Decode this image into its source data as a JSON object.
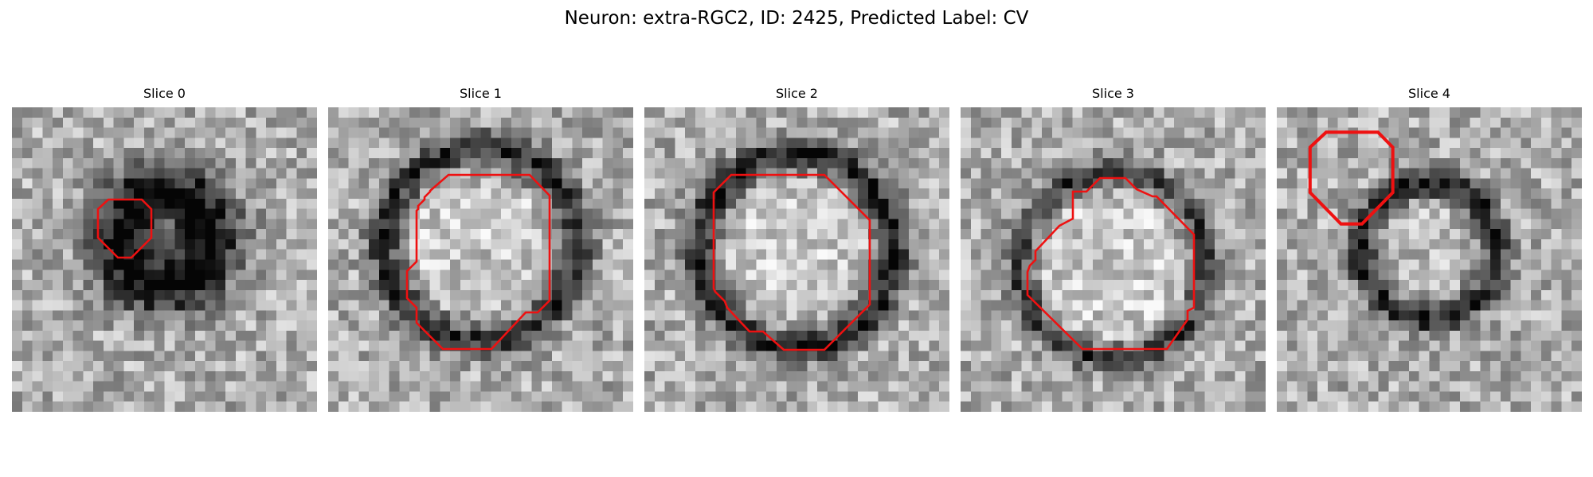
{
  "figure": {
    "title": "Neuron: extra-RGC2, ID: 2425, Predicted Label: CV"
  },
  "contour_color": "#ee1111",
  "slices": [
    {
      "title": "Slice 0"
    },
    {
      "title": "Slice 1"
    },
    {
      "title": "Slice 2"
    },
    {
      "title": "Slice 3"
    },
    {
      "title": "Slice 4"
    }
  ]
}
